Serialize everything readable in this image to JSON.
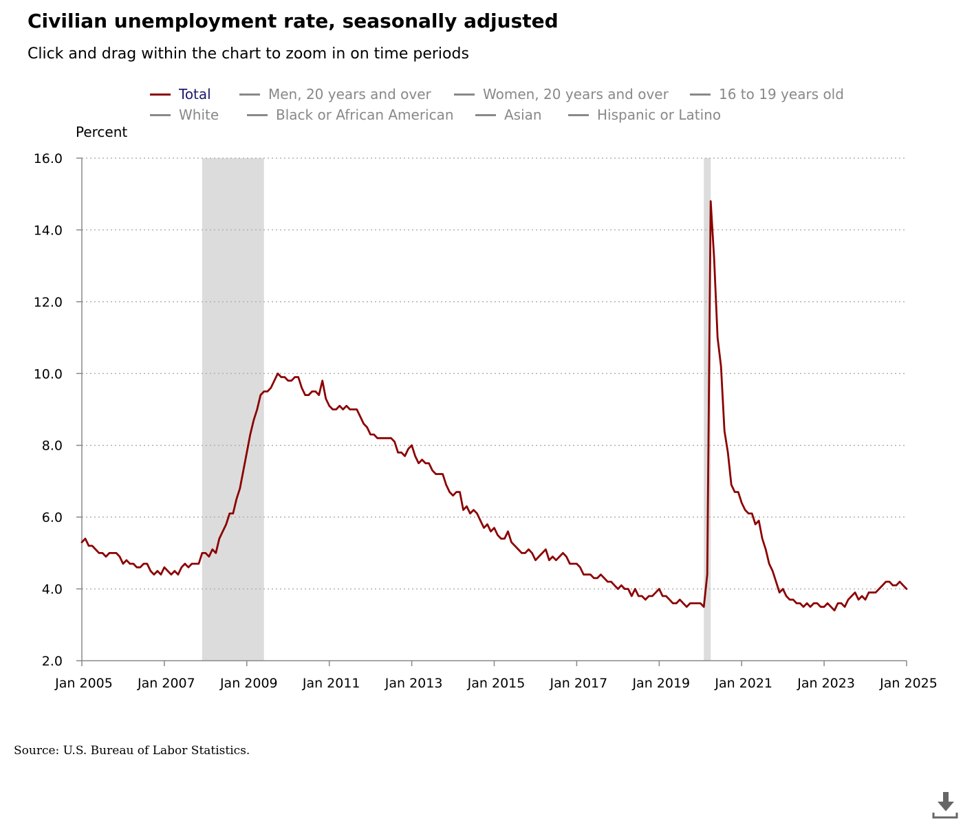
{
  "header": {
    "title": "Civilian unemployment rate, seasonally adjusted",
    "subtitle": "Click and drag within the chart to zoom in on time periods"
  },
  "legend": {
    "rows": [
      [
        {
          "label": "Total",
          "active": true
        },
        {
          "label": "Men, 20 years and over",
          "active": false
        },
        {
          "label": "Women, 20 years and over",
          "active": false
        },
        {
          "label": "16 to 19 years old",
          "active": false
        }
      ],
      [
        {
          "label": "White",
          "active": false
        },
        {
          "label": "Black or African American",
          "active": false
        },
        {
          "label": "Asian",
          "active": false
        },
        {
          "label": "Hispanic or Latino",
          "active": false
        }
      ]
    ]
  },
  "footer": {
    "source": "Source: U.S. Bureau of Labor Statistics."
  },
  "icons": {
    "download": "download-icon"
  },
  "colors": {
    "series_total": "#8b0000",
    "legend_active_text": "#1a1a6e",
    "legend_inactive": "#888888",
    "recession_band": "#dcdcdc",
    "gridline": "#b0b0b0",
    "axis": "#888888"
  },
  "chart_data": {
    "type": "line",
    "title": "Civilian unemployment rate, seasonally adjusted",
    "ylabel": "Percent",
    "xlabel": "",
    "ylim": [
      2.0,
      16.0
    ],
    "yticks": [
      "2.0",
      "4.0",
      "6.0",
      "8.0",
      "10.0",
      "12.0",
      "14.0",
      "16.0"
    ],
    "xticks": [
      "Jan 2005",
      "Jan 2007",
      "Jan 2009",
      "Jan 2011",
      "Jan 2013",
      "Jan 2015",
      "Jan 2017",
      "Jan 2019",
      "Jan 2021",
      "Jan 2023",
      "Jan 2025"
    ],
    "x_start": "Jan 2005",
    "x_end": "Jan 2025",
    "frequency": "monthly",
    "grid": true,
    "recessions": [
      {
        "start": "Dec 2007",
        "end": "Jun 2009"
      },
      {
        "start": "Feb 2020",
        "end": "Apr 2020"
      }
    ],
    "series": [
      {
        "name": "Total",
        "values": [
          5.3,
          5.4,
          5.2,
          5.2,
          5.1,
          5.0,
          5.0,
          4.9,
          5.0,
          5.0,
          5.0,
          4.9,
          4.7,
          4.8,
          4.7,
          4.7,
          4.6,
          4.6,
          4.7,
          4.7,
          4.5,
          4.4,
          4.5,
          4.4,
          4.6,
          4.5,
          4.4,
          4.5,
          4.4,
          4.6,
          4.7,
          4.6,
          4.7,
          4.7,
          4.7,
          5.0,
          5.0,
          4.9,
          5.1,
          5.0,
          5.4,
          5.6,
          5.8,
          6.1,
          6.1,
          6.5,
          6.8,
          7.3,
          7.8,
          8.3,
          8.7,
          9.0,
          9.4,
          9.5,
          9.5,
          9.6,
          9.8,
          10.0,
          9.9,
          9.9,
          9.8,
          9.8,
          9.9,
          9.9,
          9.6,
          9.4,
          9.4,
          9.5,
          9.5,
          9.4,
          9.8,
          9.3,
          9.1,
          9.0,
          9.0,
          9.1,
          9.0,
          9.1,
          9.0,
          9.0,
          9.0,
          8.8,
          8.6,
          8.5,
          8.3,
          8.3,
          8.2,
          8.2,
          8.2,
          8.2,
          8.2,
          8.1,
          7.8,
          7.8,
          7.7,
          7.9,
          8.0,
          7.7,
          7.5,
          7.6,
          7.5,
          7.5,
          7.3,
          7.2,
          7.2,
          7.2,
          6.9,
          6.7,
          6.6,
          6.7,
          6.7,
          6.2,
          6.3,
          6.1,
          6.2,
          6.1,
          5.9,
          5.7,
          5.8,
          5.6,
          5.7,
          5.5,
          5.4,
          5.4,
          5.6,
          5.3,
          5.2,
          5.1,
          5.0,
          5.0,
          5.1,
          5.0,
          4.8,
          4.9,
          5.0,
          5.1,
          4.8,
          4.9,
          4.8,
          4.9,
          5.0,
          4.9,
          4.7,
          4.7,
          4.7,
          4.6,
          4.4,
          4.4,
          4.4,
          4.3,
          4.3,
          4.4,
          4.3,
          4.2,
          4.2,
          4.1,
          4.0,
          4.1,
          4.0,
          4.0,
          3.8,
          4.0,
          3.8,
          3.8,
          3.7,
          3.8,
          3.8,
          3.9,
          4.0,
          3.8,
          3.8,
          3.7,
          3.6,
          3.6,
          3.7,
          3.6,
          3.5,
          3.6,
          3.6,
          3.6,
          3.6,
          3.5,
          4.4,
          14.8,
          13.2,
          11.0,
          10.2,
          8.4,
          7.8,
          6.9,
          6.7,
          6.7,
          6.4,
          6.2,
          6.1,
          6.1,
          5.8,
          5.9,
          5.4,
          5.1,
          4.7,
          4.5,
          4.2,
          3.9,
          4.0,
          3.8,
          3.7,
          3.7,
          3.6,
          3.6,
          3.5,
          3.6,
          3.5,
          3.6,
          3.6,
          3.5,
          3.5,
          3.6,
          3.5,
          3.4,
          3.6,
          3.6,
          3.5,
          3.7,
          3.8,
          3.9,
          3.7,
          3.8,
          3.7,
          3.9,
          3.9,
          3.9,
          4.0,
          4.1,
          4.2,
          4.2,
          4.1,
          4.1,
          4.2,
          4.1,
          4.0
        ]
      }
    ]
  }
}
